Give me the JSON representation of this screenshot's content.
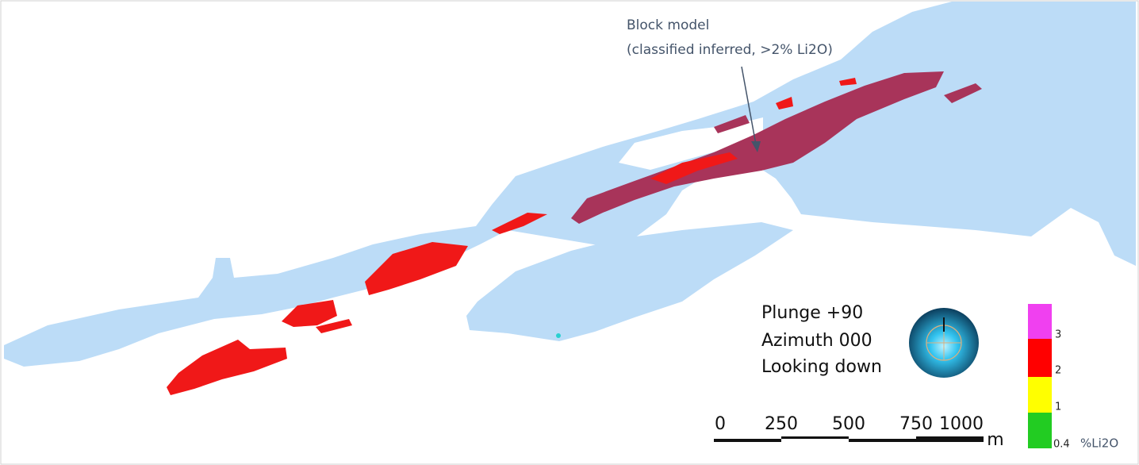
{
  "annotation": {
    "lines": [
      "Block model",
      "(classified inferred, >2% Li2O)"
    ]
  },
  "view": {
    "lines": [
      "Plunge +90",
      "Azimuth 000",
      "Looking down"
    ]
  },
  "scale_bar": {
    "labels": [
      0,
      250,
      500,
      750,
      1000
    ],
    "unit": "m"
  },
  "legend": {
    "labels": [
      3,
      2,
      1,
      0.4
    ],
    "unit": "%Li2O"
  }
}
